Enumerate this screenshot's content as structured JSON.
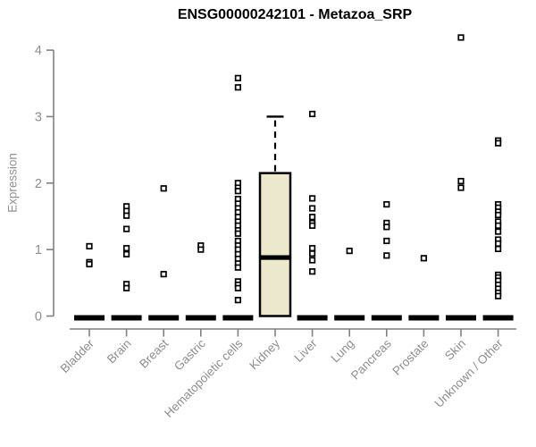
{
  "title": "ENSG00000242101 - Metazoa_SRP",
  "y_axis": {
    "label": "Expression",
    "ticks": [
      "0",
      "1",
      "2",
      "3",
      "4"
    ]
  },
  "chart_data": {
    "type": "boxplot",
    "title": "ENSG00000242101 - Metazoa_SRP",
    "xlabel": "",
    "ylabel": "Expression",
    "ylim": [
      0,
      4.3
    ],
    "yticks": [
      0,
      1,
      2,
      3,
      4
    ],
    "grid": false,
    "categories": [
      "Bladder",
      "Brain",
      "Breast",
      "Gastric",
      "Hematopoietic cells",
      "Kidney",
      "Liver",
      "Lung",
      "Pancreas",
      "Prostate",
      "Skin",
      "Unknown / Other"
    ],
    "series": [
      {
        "name": "Bladder",
        "box": {
          "lo": 0,
          "q1": 0,
          "median": 0,
          "q3": 0,
          "hi": 0
        },
        "points": [
          1.05,
          0.81,
          0.78
        ]
      },
      {
        "name": "Brain",
        "box": {
          "lo": 0,
          "q1": 0,
          "median": 0,
          "q3": 0,
          "hi": 0
        },
        "points": [
          1.65,
          1.58,
          1.51,
          1.31,
          1.02,
          0.93,
          0.48,
          0.42
        ]
      },
      {
        "name": "Breast",
        "box": {
          "lo": 0,
          "q1": 0,
          "median": 0,
          "q3": 0,
          "hi": 0
        },
        "points": [
          1.92,
          0.63
        ]
      },
      {
        "name": "Gastric",
        "box": {
          "lo": 0,
          "q1": 0,
          "median": 0,
          "q3": 0,
          "hi": 0
        },
        "points": [
          1.06,
          1.0
        ]
      },
      {
        "name": "Hematopoietic cells",
        "box": {
          "lo": 0,
          "q1": 0,
          "median": 0,
          "q3": 0,
          "hi": 0
        },
        "points": [
          3.58,
          3.44,
          2.0,
          1.93,
          1.88,
          1.76,
          1.69,
          1.62,
          1.56,
          1.49,
          1.42,
          1.36,
          1.29,
          1.24,
          1.13,
          1.06,
          1.0,
          0.93,
          0.86,
          0.79,
          0.73,
          0.52,
          0.47,
          0.42,
          0.24
        ]
      },
      {
        "name": "Kidney",
        "box": {
          "lo": 0,
          "q1": 0,
          "median": 0.88,
          "q3": 2.15,
          "hi": 3.0
        },
        "points": []
      },
      {
        "name": "Liver",
        "box": {
          "lo": 0,
          "q1": 0,
          "median": 0,
          "q3": 0,
          "hi": 0
        },
        "points": [
          3.04,
          1.77,
          1.62,
          1.49,
          1.4,
          1.36,
          1.02,
          0.94,
          0.84,
          0.67
        ]
      },
      {
        "name": "Lung",
        "box": {
          "lo": 0,
          "q1": 0,
          "median": 0,
          "q3": 0,
          "hi": 0
        },
        "points": [
          0.98
        ]
      },
      {
        "name": "Pancreas",
        "box": {
          "lo": 0,
          "q1": 0,
          "median": 0,
          "q3": 0,
          "hi": 0
        },
        "points": [
          1.68,
          1.4,
          1.34,
          1.13,
          0.91
        ]
      },
      {
        "name": "Prostate",
        "box": {
          "lo": 0,
          "q1": 0,
          "median": 0,
          "q3": 0,
          "hi": 0
        },
        "points": [
          0.87
        ]
      },
      {
        "name": "Skin",
        "box": {
          "lo": 0,
          "q1": 0,
          "median": 0,
          "q3": 0,
          "hi": 0
        },
        "points": [
          4.19,
          2.03,
          1.93
        ]
      },
      {
        "name": "Unknown / Other",
        "box": {
          "lo": 0,
          "q1": 0,
          "median": 0,
          "q3": 0,
          "hi": 0
        },
        "points": [
          2.64,
          2.6,
          1.68,
          1.63,
          1.57,
          1.52,
          1.42,
          1.36,
          1.27,
          1.15,
          1.09,
          1.01,
          0.62,
          0.58,
          0.53,
          0.47,
          0.41,
          0.35,
          0.3
        ]
      }
    ],
    "colors": {
      "box_fill": "#ece8cd",
      "box_stroke": "#000000",
      "median": "#000000",
      "point_stroke": "#000000",
      "point_fill": "#ffffff",
      "axis": "#808080",
      "tick_text": "#8e8e8e",
      "title_text": "#000000",
      "background": "#ffffff"
    }
  }
}
